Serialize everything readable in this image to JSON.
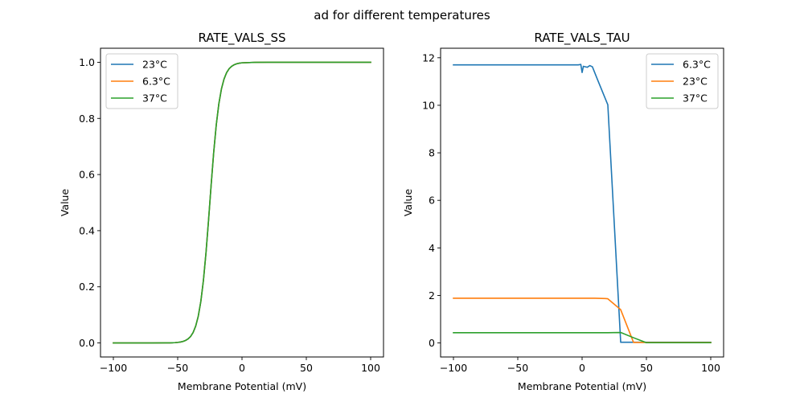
{
  "figure": {
    "suptitle": "ad for different temperatures"
  },
  "chart_data": [
    {
      "type": "line",
      "title": "RATE_VALS_SS",
      "xlabel": "Membrane Potential (mV)",
      "ylabel": "Value",
      "xlim": [
        -110,
        110
      ],
      "ylim": [
        -0.05,
        1.05
      ],
      "xticks": [
        -100,
        -50,
        0,
        50,
        100
      ],
      "xtick_labels": [
        "−100",
        "−50",
        "0",
        "50",
        "100"
      ],
      "yticks": [
        0.0,
        0.2,
        0.4,
        0.6,
        0.8,
        1.0
      ],
      "ytick_labels": [
        "0.0",
        "0.2",
        "0.4",
        "0.6",
        "0.8",
        "1.0"
      ],
      "grid": false,
      "legend_position": "upper-left",
      "x": [
        -100,
        -90,
        -80,
        -70,
        -60,
        -58,
        -56,
        -54,
        -52,
        -50,
        -48,
        -46,
        -44,
        -42,
        -40,
        -38,
        -36,
        -34,
        -32,
        -30,
        -28,
        -26,
        -24,
        -22,
        -20,
        -18,
        -16,
        -14,
        -12,
        -10,
        -8,
        -6,
        -4,
        -2,
        0,
        10,
        20,
        30,
        40,
        50,
        60,
        70,
        80,
        90,
        100
      ],
      "series": [
        {
          "name": "23°C",
          "color": "#1f77b4",
          "values": [
            0.0,
            0.0,
            0.0,
            0.0,
            0.0002,
            0.0003,
            0.0004,
            0.0007,
            0.0012,
            0.0019,
            0.0032,
            0.0052,
            0.0086,
            0.0141,
            0.023,
            0.0373,
            0.0601,
            0.0953,
            0.148,
            0.2227,
            0.3208,
            0.4378,
            0.5622,
            0.6792,
            0.7773,
            0.852,
            0.9047,
            0.9399,
            0.9627,
            0.977,
            0.9859,
            0.9914,
            0.9948,
            0.9968,
            0.9981,
            0.9998,
            1.0,
            1.0,
            1.0,
            1.0,
            1.0,
            1.0,
            1.0,
            1.0,
            1.0
          ]
        },
        {
          "name": "6.3°C",
          "color": "#ff7f0e",
          "values": [
            0.0,
            0.0,
            0.0,
            0.0,
            0.0002,
            0.0003,
            0.0004,
            0.0007,
            0.0012,
            0.0019,
            0.0032,
            0.0052,
            0.0086,
            0.0141,
            0.023,
            0.0373,
            0.0601,
            0.0953,
            0.148,
            0.2227,
            0.3208,
            0.4378,
            0.5622,
            0.6792,
            0.7773,
            0.852,
            0.9047,
            0.9399,
            0.9627,
            0.977,
            0.9859,
            0.9914,
            0.9948,
            0.9968,
            0.9981,
            0.9998,
            1.0,
            1.0,
            1.0,
            1.0,
            1.0,
            1.0,
            1.0,
            1.0,
            1.0
          ]
        },
        {
          "name": "37°C",
          "color": "#2ca02c",
          "values": [
            0.0,
            0.0,
            0.0,
            0.0,
            0.0002,
            0.0003,
            0.0004,
            0.0007,
            0.0012,
            0.0019,
            0.0032,
            0.0052,
            0.0086,
            0.0141,
            0.023,
            0.0373,
            0.0601,
            0.0953,
            0.148,
            0.2227,
            0.3208,
            0.4378,
            0.5622,
            0.6792,
            0.7773,
            0.852,
            0.9047,
            0.9399,
            0.9627,
            0.977,
            0.9859,
            0.9914,
            0.9948,
            0.9968,
            0.9981,
            0.9998,
            1.0,
            1.0,
            1.0,
            1.0,
            1.0,
            1.0,
            1.0,
            1.0,
            1.0
          ]
        }
      ]
    },
    {
      "type": "line",
      "title": "RATE_VALS_TAU",
      "xlabel": "Membrane Potential (mV)",
      "ylabel": "Value",
      "xlim": [
        -110,
        110
      ],
      "ylim": [
        -0.59,
        12.4
      ],
      "xticks": [
        -100,
        -50,
        0,
        50,
        100
      ],
      "xtick_labels": [
        "−100",
        "−50",
        "0",
        "50",
        "100"
      ],
      "yticks": [
        0,
        2,
        4,
        6,
        8,
        10,
        12
      ],
      "ytick_labels": [
        "0",
        "2",
        "4",
        "6",
        "8",
        "10",
        "12"
      ],
      "grid": false,
      "legend_position": "upper-right",
      "series": [
        {
          "name": "6.3°C",
          "color": "#1f77b4",
          "x": [
            -100,
            -90,
            -80,
            -70,
            -60,
            -50,
            -40,
            -30,
            -20,
            -10,
            -3,
            -1,
            0,
            1,
            4,
            6,
            8,
            12,
            20,
            30,
            40,
            50,
            60,
            70,
            80,
            90,
            100
          ],
          "values": [
            11.7,
            11.7,
            11.7,
            11.7,
            11.7,
            11.7,
            11.7,
            11.7,
            11.7,
            11.7,
            11.7,
            11.72,
            11.38,
            11.64,
            11.6,
            11.67,
            11.62,
            11.08,
            10.02,
            0.03,
            0.03,
            0.03,
            0.03,
            0.03,
            0.03,
            0.03,
            0.03
          ]
        },
        {
          "name": "23°C",
          "color": "#ff7f0e",
          "x": [
            -100,
            -90,
            -80,
            -70,
            -60,
            -50,
            -40,
            -30,
            -20,
            -10,
            0,
            10,
            18,
            20,
            30,
            40,
            50,
            60,
            70,
            80,
            90,
            100
          ],
          "values": [
            1.88,
            1.88,
            1.88,
            1.88,
            1.88,
            1.88,
            1.88,
            1.88,
            1.88,
            1.88,
            1.88,
            1.88,
            1.87,
            1.86,
            1.4,
            0.02,
            0.02,
            0.02,
            0.02,
            0.02,
            0.02,
            0.02
          ]
        },
        {
          "name": "37°C",
          "color": "#2ca02c",
          "x": [
            -100,
            -90,
            -80,
            -70,
            -60,
            -50,
            -40,
            -30,
            -20,
            -10,
            0,
            10,
            20,
            30,
            40,
            50,
            60,
            70,
            80,
            90,
            100
          ],
          "values": [
            0.43,
            0.43,
            0.43,
            0.43,
            0.43,
            0.43,
            0.43,
            0.43,
            0.43,
            0.43,
            0.43,
            0.43,
            0.43,
            0.44,
            0.22,
            0.01,
            0.01,
            0.01,
            0.01,
            0.01,
            0.01
          ]
        }
      ]
    }
  ]
}
